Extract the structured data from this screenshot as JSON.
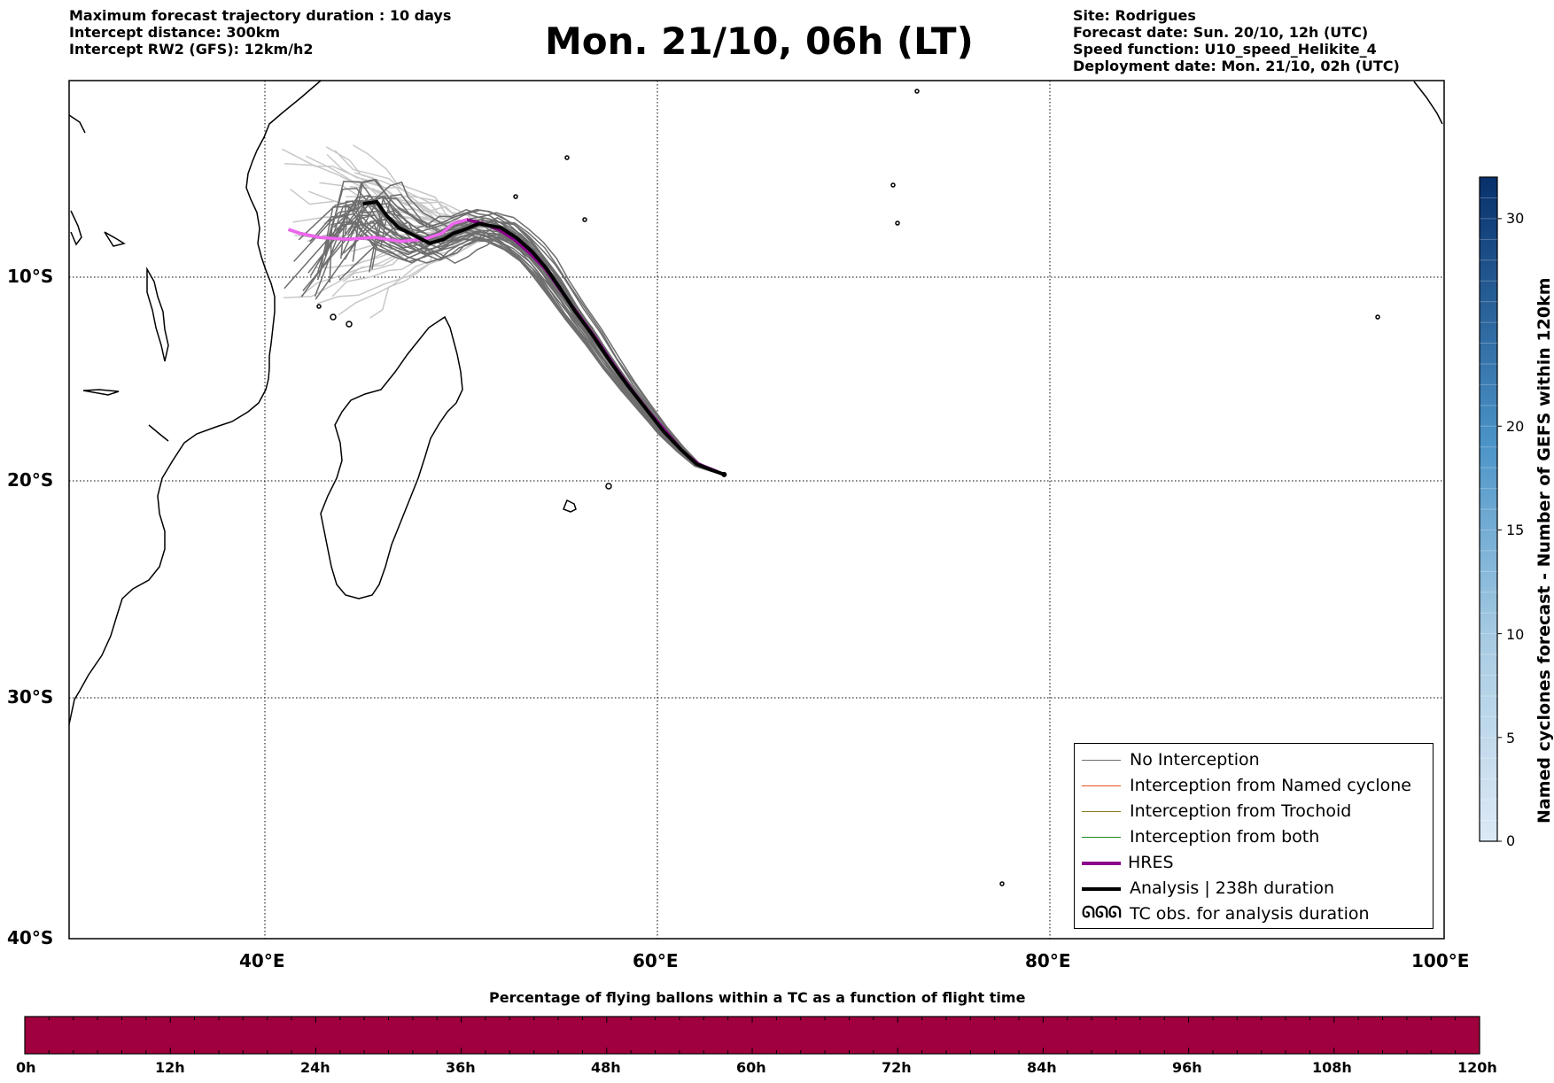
{
  "header": {
    "left_lines": [
      "Maximum forecast trajectory duration : 10 days",
      "Intercept distance: 300km",
      "Intercept RW2 (GFS):  12km/h2"
    ],
    "title": "Mon. 21/10, 06h (LT)",
    "right_lines": [
      "Site: Rodrigues",
      "Forecast date: Sun. 20/10, 12h (UTC)",
      "Speed function: U10_speed_Helikite_4",
      "Deployment date: Mon. 21/10, 02h (UTC)"
    ]
  },
  "map": {
    "lon_labels": [
      "40°E",
      "60°E",
      "80°E",
      "100°E"
    ],
    "lat_labels": [
      "10°S",
      "20°S",
      "30°S",
      "40°S"
    ],
    "extent": {
      "lon": [
        30,
        100
      ],
      "lat": [
        -40,
        0.5
      ]
    },
    "colors": {
      "no_interception": "#6e6e6e",
      "ensemble_light": "#c8c8c8",
      "hres": "#8b008b",
      "hres_light": "#ee66ee",
      "analysis": "#000000"
    },
    "analysis_track": [
      [
        45.0,
        -6.3
      ],
      [
        45.7,
        -6.2
      ],
      [
        46.2,
        -6.9
      ],
      [
        46.8,
        -7.5
      ],
      [
        47.6,
        -7.9
      ],
      [
        48.4,
        -8.3
      ],
      [
        49.1,
        -8.1
      ],
      [
        49.6,
        -7.8
      ],
      [
        50.2,
        -7.6
      ],
      [
        50.9,
        -7.3
      ],
      [
        51.4,
        -7.4
      ],
      [
        52.0,
        -7.5
      ],
      [
        52.8,
        -8.0
      ],
      [
        53.6,
        -8.7
      ],
      [
        54.3,
        -9.5
      ],
      [
        55.0,
        -10.5
      ],
      [
        55.8,
        -11.7
      ],
      [
        56.7,
        -12.9
      ],
      [
        57.6,
        -14.2
      ],
      [
        58.5,
        -15.4
      ],
      [
        59.4,
        -16.5
      ],
      [
        60.3,
        -17.6
      ],
      [
        61.2,
        -18.5
      ],
      [
        62.0,
        -19.2
      ],
      [
        62.8,
        -19.5
      ],
      [
        63.4,
        -19.7
      ]
    ],
    "hres_track": [
      [
        41.2,
        -7.6
      ],
      [
        41.8,
        -7.8
      ],
      [
        42.8,
        -8.0
      ],
      [
        44.2,
        -8.1
      ],
      [
        45.6,
        -8.0
      ],
      [
        46.9,
        -8.2
      ],
      [
        48.1,
        -8.1
      ],
      [
        49.0,
        -7.8
      ],
      [
        49.6,
        -7.3
      ],
      [
        50.3,
        -7.1
      ],
      [
        51.1,
        -7.3
      ],
      [
        51.9,
        -7.6
      ],
      [
        52.7,
        -8.1
      ],
      [
        53.5,
        -8.8
      ],
      [
        54.3,
        -9.6
      ],
      [
        55.1,
        -10.7
      ],
      [
        56.0,
        -11.9
      ],
      [
        56.9,
        -13.1
      ],
      [
        57.8,
        -14.4
      ],
      [
        58.7,
        -15.6
      ],
      [
        59.6,
        -16.7
      ],
      [
        60.5,
        -17.7
      ],
      [
        61.3,
        -18.6
      ],
      [
        62.1,
        -19.2
      ],
      [
        62.9,
        -19.5
      ],
      [
        63.4,
        -19.7
      ]
    ],
    "site_marker": [
      63.4,
      -19.7
    ]
  },
  "legend": {
    "items": [
      {
        "label": "No Interception",
        "color": "#6e6e6e",
        "width": 1.5,
        "kind": "line"
      },
      {
        "label": "Interception from Named cyclone",
        "color": "#e8501e",
        "width": 1.5,
        "kind": "line"
      },
      {
        "label": "Interception from Trochoid",
        "color": "#8b7a1e",
        "width": 1.5,
        "kind": "line"
      },
      {
        "label": "Interception from both",
        "color": "#1e8b1e",
        "width": 1.5,
        "kind": "line"
      },
      {
        "label": "HRES",
        "color": "#8b008b",
        "width": 4,
        "kind": "line"
      },
      {
        "label": "Analysis | 238h duration",
        "color": "#000000",
        "width": 4,
        "kind": "line"
      },
      {
        "label": "TC obs. for analysis duration",
        "color": "#000000",
        "width": 0,
        "kind": "symbol",
        "symbol": "ᘏᘏᘏ"
      }
    ]
  },
  "colorbar_right": {
    "title": "Named cyclones forecast - Number of GEFS within 120km",
    "ticks": [
      "0",
      "5",
      "10",
      "15",
      "20",
      "30"
    ],
    "tick_values": [
      0,
      5,
      10,
      15,
      20,
      30
    ],
    "range": [
      0,
      32
    ],
    "color_low": "#dce9f6",
    "color_high": "#08306b"
  },
  "colorbar_bottom": {
    "title": "Percentage of flying ballons within a TC as a function of flight time",
    "ticks": [
      "0h",
      "12h",
      "24h",
      "36h",
      "48h",
      "60h",
      "72h",
      "84h",
      "96h",
      "108h",
      "120h"
    ],
    "fill_color": "#a0003e"
  }
}
